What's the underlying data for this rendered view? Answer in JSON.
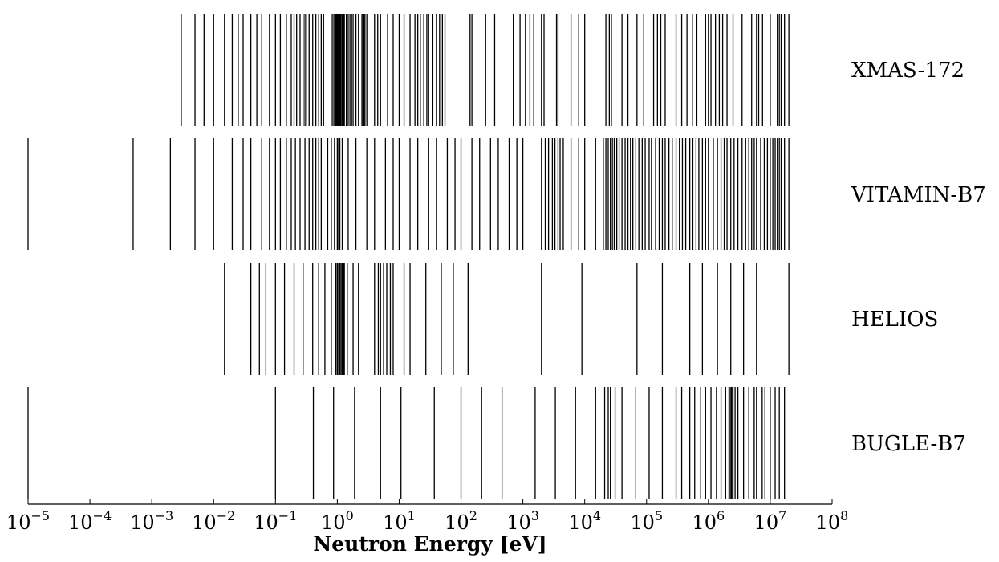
{
  "chart_data": {
    "type": "eventplot",
    "xlabel": "Neutron Energy [eV]",
    "xscale": "log",
    "xlim": [
      1e-05,
      100000000.0
    ],
    "x_ticks": [
      {
        "value": 1e-05,
        "base": "10",
        "exp": "−5"
      },
      {
        "value": 0.0001,
        "base": "10",
        "exp": "−4"
      },
      {
        "value": 0.001,
        "base": "10",
        "exp": "−3"
      },
      {
        "value": 0.01,
        "base": "10",
        "exp": "−2"
      },
      {
        "value": 0.1,
        "base": "10",
        "exp": "−1"
      },
      {
        "value": 1.0,
        "base": "10",
        "exp": "0"
      },
      {
        "value": 10.0,
        "base": "10",
        "exp": "1"
      },
      {
        "value": 100.0,
        "base": "10",
        "exp": "2"
      },
      {
        "value": 1000.0,
        "base": "10",
        "exp": "3"
      },
      {
        "value": 10000.0,
        "base": "10",
        "exp": "4"
      },
      {
        "value": 100000.0,
        "base": "10",
        "exp": "5"
      },
      {
        "value": 1000000.0,
        "base": "10",
        "exp": "6"
      },
      {
        "value": 10000000.0,
        "base": "10",
        "exp": "7"
      },
      {
        "value": 100000000.0,
        "base": "10",
        "exp": "8"
      }
    ],
    "grid": false,
    "rows": [
      {
        "name": "XMAS-172",
        "boundaries": [
          0.003,
          0.005,
          0.007,
          0.01,
          0.015,
          0.02,
          0.025,
          0.03,
          0.04,
          0.05,
          0.06,
          0.08,
          0.1,
          0.12,
          0.15,
          0.18,
          0.2,
          0.22,
          0.25,
          0.28,
          0.3,
          0.32,
          0.35,
          0.4,
          0.45,
          0.5,
          0.55,
          0.6,
          0.8,
          0.85,
          0.9,
          0.93,
          0.96,
          0.98,
          1.0,
          1.02,
          1.04,
          1.06,
          1.08,
          1.1,
          1.12,
          1.15,
          1.2,
          1.25,
          1.3,
          1.4,
          1.5,
          1.6,
          1.7,
          1.8,
          2.0,
          2.2,
          2.5,
          2.6,
          2.7,
          2.8,
          3.0,
          4.0,
          4.5,
          5.0,
          6.5,
          8.0,
          10,
          12,
          15,
          18,
          20,
          22,
          25,
          28,
          30,
          35,
          40,
          45,
          50,
          55,
          140,
          150,
          250,
          350,
          700,
          900,
          1100,
          1300,
          1500,
          2000,
          2200,
          3500,
          3700,
          6000,
          8000,
          10000,
          22000,
          25000,
          27000,
          40000,
          50000,
          70000,
          90000,
          130000,
          150000,
          170000,
          200000,
          300000,
          370000,
          450000,
          550000,
          650000,
          900000,
          1000000,
          1100000,
          1300000,
          1500000,
          1700000,
          2000000,
          2500000,
          3500000,
          5000000,
          6000000,
          6500000,
          7500000,
          10000000,
          13000000,
          14000000,
          15000000,
          17000000,
          20000000
        ]
      },
      {
        "name": "VITAMIN-B7",
        "boundaries": [
          1e-05,
          0.0005,
          0.002,
          0.005,
          0.01,
          0.02,
          0.03,
          0.04,
          0.06,
          0.08,
          0.1,
          0.12,
          0.15,
          0.18,
          0.21,
          0.25,
          0.3,
          0.35,
          0.4,
          0.45,
          0.5,
          0.55,
          0.7,
          0.8,
          0.9,
          1.0,
          1.05,
          1.1,
          1.2,
          1.5,
          2.0,
          3.0,
          4.0,
          6.0,
          8.0,
          10,
          15,
          20,
          30,
          40,
          60,
          80,
          100,
          150,
          200,
          300,
          400,
          600,
          800,
          1000,
          2000,
          2300,
          2600,
          3000,
          3300,
          3700,
          4000,
          4500,
          6000,
          8000,
          10000,
          15000,
          20000,
          22000,
          24000,
          26000,
          28000,
          30000,
          33000,
          36000,
          40000,
          45000,
          50000,
          55000,
          60000,
          67000,
          75000,
          85000,
          95000,
          110000,
          120000,
          140000,
          160000,
          180000,
          200000,
          230000,
          260000,
          300000,
          340000,
          380000,
          430000,
          500000,
          560000,
          630000,
          700000,
          800000,
          900000,
          1000000,
          1200000,
          1400000,
          1600000,
          1800000,
          2000000,
          2300000,
          2600000,
          3000000,
          3500000,
          4000000,
          4500000,
          5000000,
          5500000,
          6000000,
          7000000,
          8000000,
          9000000,
          10000000,
          11000000,
          12000000,
          13000000,
          14000000,
          15000000,
          17000000,
          20000000
        ]
      },
      {
        "name": "HELIOS",
        "boundaries": [
          0.015,
          0.04,
          0.055,
          0.07,
          0.1,
          0.14,
          0.2,
          0.28,
          0.4,
          0.5,
          0.63,
          0.8,
          0.95,
          1.0,
          1.05,
          1.1,
          1.15,
          1.2,
          1.25,
          1.3,
          1.45,
          1.8,
          2.2,
          4.0,
          4.6,
          5.0,
          5.6,
          6.3,
          7.2,
          8.0,
          12,
          15,
          27,
          48,
          75,
          130,
          2000,
          9000,
          70000,
          180000,
          500000,
          800000,
          1400000,
          2300000,
          3700000,
          6000000,
          20000000
        ]
      },
      {
        "name": "BUGLE-B7",
        "boundaries": [
          1e-05,
          0.1,
          0.41,
          0.87,
          1.9,
          5.0,
          10.7,
          37,
          100,
          215,
          460,
          1580,
          3350,
          7100,
          15000,
          21000,
          24000,
          26000,
          31000,
          40000,
          67000,
          110000,
          180000,
          300000,
          370000,
          500000,
          600000,
          750000,
          900000,
          1100000,
          1350000,
          1600000,
          1900000,
          2150000,
          2250000,
          2350000,
          2450000,
          2500000,
          2700000,
          3000000,
          3700000,
          4500000,
          5500000,
          6000000,
          7400000,
          8200000,
          10000000,
          12000000,
          14000000,
          17000000
        ]
      }
    ]
  }
}
